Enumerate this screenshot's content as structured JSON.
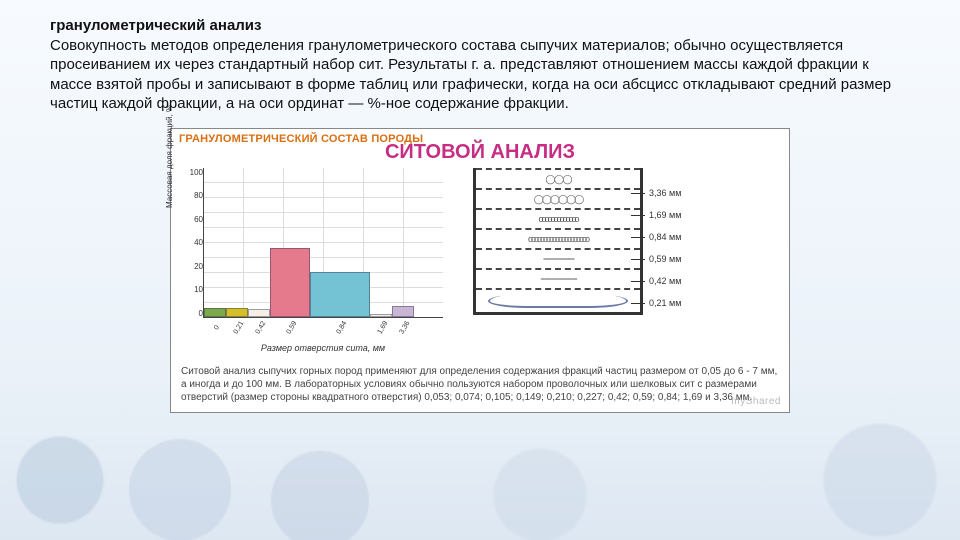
{
  "text": {
    "title": "гранулометрический анализ",
    "body": "Совокупность методов определения гранулометрического состава сыпучих материалов; обычно осуществляется просеиванием их через стандартный набор сит. Результаты г. а. представляют отношением массы каждой фракции к массе взятой пробы и записывают в форме таблиц или графически, когда на оси абсцисс откладывают средний размер частиц каждой фракции, а на оси ординат — %-ное содержание фракции."
  },
  "figure": {
    "header_orange": "ГРАНУЛОМЕТРИЧЕСКИЙ СОСТАВ ПОРОДЫ",
    "header_main": "СИТОВОЙ АНАЛИЗ",
    "caption": "Ситовой анализ сыпучих горных пород применяют для определения содержания фракций частиц размером от 0,05 до 6 - 7 мм, а иногда и до 100 мм. В лабораторных условиях обычно пользуются набором проволочных или шелковых сит с размерами отверстий (размер стороны квадратного отверстия) 0,053; 0,074; 0,105; 0,149; 0,210; 0,227; 0,42; 0,59; 0,84; 1,69 и 3,36 мм.",
    "watermark": "myShared"
  },
  "chart": {
    "type": "bar",
    "ylabel": "Массовая доля фракций, %",
    "xlabel": "Размер отверстия сита, мм",
    "ylim": [
      0,
      100
    ],
    "yticks": [
      100,
      80,
      60,
      40,
      20,
      10,
      0
    ],
    "categories": [
      "0",
      "0,21",
      "0,42",
      "0,59",
      "0,84",
      "1,69",
      "3,36"
    ],
    "values": [
      6,
      6,
      5,
      46,
      30,
      2,
      7
    ],
    "bar_colors": [
      "#7ca94a",
      "#d4bf29",
      "#f5efe6",
      "#e57a8d",
      "#73c3d4",
      "#f5efe6",
      "#c9b6d5"
    ],
    "background_color": "#ffffff",
    "grid_color": "#dddddd",
    "axis_color": "#444444"
  },
  "sieves": {
    "mesh_sizes": [
      "3,36 мм",
      "1,69 мм",
      "0,84 мм",
      "0,59 мм",
      "0,42 мм",
      "0,21 мм"
    ],
    "grain_glyph": [
      "◯ ◯  ◯",
      "◯◯◯◯◯◯",
      "ooooooooooooo",
      "oooooooooooooooooooo",
      "⋅⋅⋅⋅⋅⋅⋅⋅⋅⋅⋅⋅⋅⋅⋅⋅⋅⋅⋅⋅⋅⋅⋅⋅⋅⋅⋅⋅⋅⋅⋅⋅⋅⋅⋅⋅",
      "⋅⋅⋅⋅⋅⋅⋅⋅⋅⋅⋅⋅⋅⋅⋅⋅⋅⋅⋅⋅⋅⋅⋅⋅⋅⋅⋅⋅⋅⋅⋅⋅⋅⋅⋅⋅⋅⋅⋅⋅⋅⋅"
    ]
  }
}
